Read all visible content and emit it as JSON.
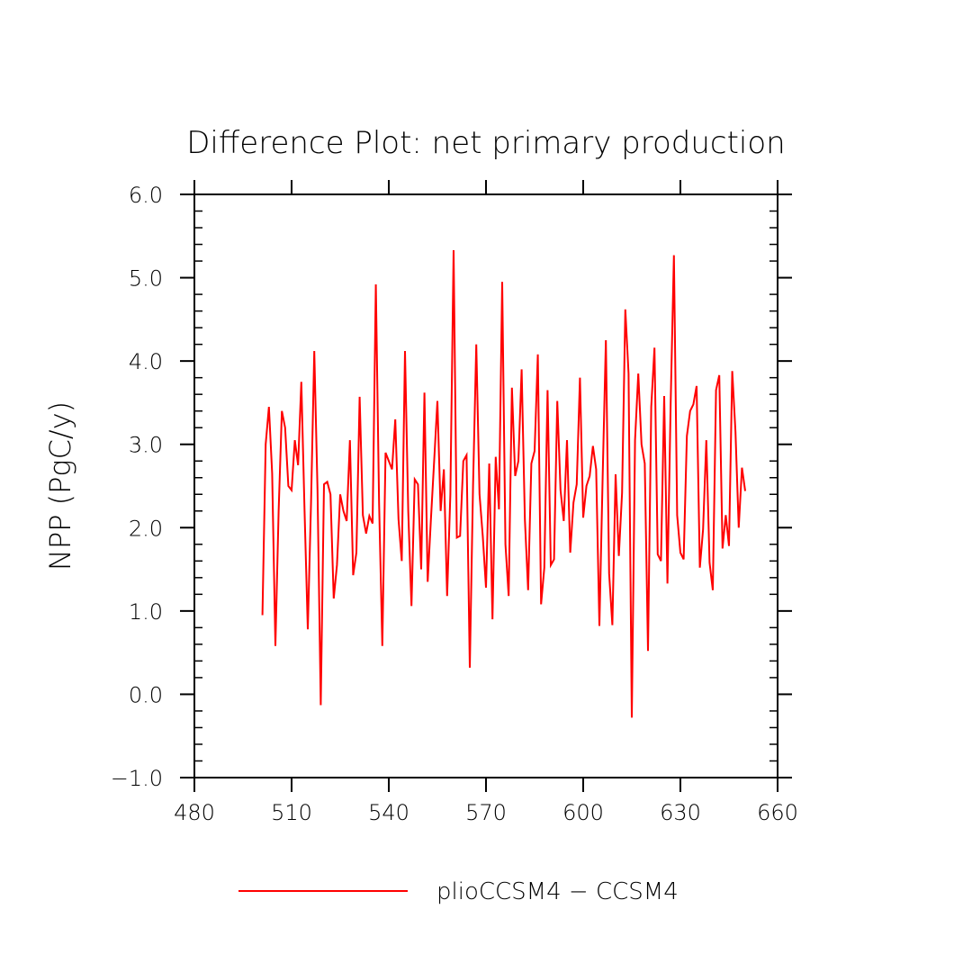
{
  "chart_data": {
    "type": "line",
    "title": "Difference Plot: net primary production",
    "xlabel": "",
    "ylabel": "NPP   (PgC/y)",
    "xlim": [
      480,
      660
    ],
    "ylim": [
      -1.0,
      6.0
    ],
    "x_ticks": [
      480,
      510,
      540,
      570,
      600,
      630,
      660
    ],
    "x_tick_labels": [
      "480",
      "510",
      "540",
      "570",
      "600",
      "630",
      "660"
    ],
    "y_ticks": [
      -1.0,
      0.0,
      1.0,
      2.0,
      3.0,
      4.0,
      5.0,
      6.0
    ],
    "y_tick_labels": [
      "−1.0",
      "0.0",
      "1.0",
      "2.0",
      "3.0",
      "4.0",
      "5.0",
      "6.0"
    ],
    "legend": {
      "position": "bottom"
    },
    "series": [
      {
        "name": "plioCCSM4 − CCSM4",
        "color": "#ff0000",
        "x_start": 501,
        "x_step": 1,
        "values": [
          0.95,
          3.0,
          3.45,
          2.65,
          0.58,
          2.2,
          3.4,
          3.2,
          2.5,
          2.45,
          3.05,
          2.75,
          3.75,
          2.2,
          0.78,
          2.3,
          4.12,
          2.45,
          -0.13,
          2.52,
          2.55,
          2.4,
          1.15,
          1.55,
          2.4,
          2.2,
          2.08,
          3.05,
          1.43,
          1.7,
          3.57,
          2.15,
          1.93,
          2.14,
          2.05,
          4.92,
          2.3,
          0.58,
          2.9,
          2.8,
          2.7,
          3.3,
          2.1,
          1.6,
          4.12,
          2.2,
          1.06,
          2.58,
          2.52,
          1.5,
          3.62,
          1.35,
          2.1,
          2.8,
          3.52,
          2.2,
          2.7,
          1.18,
          2.4,
          5.33,
          1.88,
          1.9,
          2.8,
          2.87,
          0.32,
          2.5,
          4.2,
          2.4,
          1.9,
          1.28,
          2.77,
          0.9,
          2.85,
          2.22,
          4.95,
          1.8,
          1.18,
          3.68,
          2.62,
          2.8,
          3.9,
          2.1,
          1.25,
          2.77,
          2.92,
          4.08,
          1.08,
          1.52,
          3.65,
          1.55,
          1.62,
          3.52,
          2.45,
          2.08,
          3.05,
          1.7,
          2.3,
          2.52,
          3.8,
          2.12,
          2.5,
          2.62,
          2.98,
          2.7,
          0.82,
          2.6,
          4.25,
          1.45,
          0.83,
          2.64,
          1.66,
          2.42,
          4.62,
          3.85,
          -0.28,
          3.05,
          3.85,
          3.0,
          2.77,
          0.52,
          3.45,
          4.16,
          1.68,
          1.6,
          3.58,
          1.33,
          3.5,
          5.27,
          2.15,
          1.7,
          1.62,
          3.1,
          3.4,
          3.48,
          3.7,
          1.52,
          1.98,
          3.05,
          1.58,
          1.25,
          3.65,
          3.83,
          1.75,
          2.15,
          1.78,
          3.88,
          3.15,
          2.0,
          2.72,
          2.44
        ]
      }
    ]
  }
}
